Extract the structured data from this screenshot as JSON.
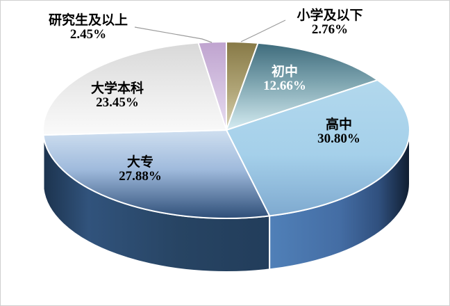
{
  "frame": {
    "background_color": "#ffffff",
    "border_color": "#cfcfcf"
  },
  "chart_data": {
    "type": "pie",
    "style": "3d",
    "title": "",
    "legend": "none",
    "unit": "%",
    "start_angle_deg": 0,
    "direction": "clockwise",
    "categories": [
      "小学及以下",
      "初中",
      "高中",
      "大专",
      "大学本科",
      "研究生及以上"
    ],
    "values": [
      2.76,
      12.66,
      30.8,
      27.88,
      23.45,
      2.45
    ],
    "slices": [
      {
        "name": "primary-school-or-below",
        "label": "小学及以下",
        "value": 2.76,
        "pct_label": "2.76%",
        "label_placement": "outside-right",
        "label_color": "#000000",
        "has_leader_line": true,
        "top_gradient": [
          [
            "0%",
            "#877946"
          ],
          [
            "55%",
            "#b0a577"
          ],
          [
            "100%",
            "#d8d1b2"
          ]
        ],
        "side_gradient": [
          [
            "0%",
            "#877946"
          ],
          [
            "100%",
            "#b0a577"
          ]
        ]
      },
      {
        "name": "middle-school",
        "label": "初中",
        "value": 12.66,
        "pct_label": "12.66%",
        "label_placement": "inside",
        "label_color": "#ffffff",
        "has_leader_line": false,
        "top_gradient": [
          [
            "0%",
            "#3e6b7c"
          ],
          [
            "45%",
            "#7da4af"
          ],
          [
            "100%",
            "#d5ecf2"
          ]
        ],
        "side_gradient": [
          [
            "0%",
            "#3e6b7c"
          ],
          [
            "100%",
            "#7da4af"
          ]
        ]
      },
      {
        "name": "high-school",
        "label": "高中",
        "value": 30.8,
        "pct_label": "30.80%",
        "label_placement": "inside",
        "label_color": "#000000",
        "has_leader_line": false,
        "top_gradient": [
          [
            "0%",
            "#b2d8ed"
          ],
          [
            "55%",
            "#a5d0ea"
          ],
          [
            "100%",
            "#7ea9cf"
          ]
        ],
        "side_gradient": [
          [
            "0%",
            "#5080b8"
          ],
          [
            "50%",
            "#446da4"
          ],
          [
            "78%",
            "#30507e"
          ],
          [
            "100%",
            "#0f1d30"
          ]
        ]
      },
      {
        "name": "junior-college",
        "label": "大专",
        "value": 27.88,
        "pct_label": "27.88%",
        "label_placement": "inside",
        "label_color": "#000000",
        "has_leader_line": false,
        "top_gradient": [
          [
            "0%",
            "#cfdff0"
          ],
          [
            "45%",
            "#9fbadc"
          ],
          [
            "100%",
            "#2e4e78"
          ]
        ],
        "side_gradient": [
          [
            "0%",
            "#1c334e"
          ],
          [
            "20%",
            "#31537c"
          ],
          [
            "60%",
            "#274463"
          ],
          [
            "100%",
            "#223d5b"
          ]
        ]
      },
      {
        "name": "bachelor-degree",
        "label": "大学本科",
        "value": 23.45,
        "pct_label": "23.45%",
        "label_placement": "inside",
        "label_color": "#000000",
        "has_leader_line": false,
        "top_gradient": [
          [
            "0%",
            "#d8d8d8"
          ],
          [
            "55%",
            "#ececec"
          ],
          [
            "100%",
            "#fafafa"
          ]
        ],
        "side_gradient": [
          [
            "0%",
            "#c8c8c8"
          ],
          [
            "100%",
            "#e6e6e6"
          ]
        ]
      },
      {
        "name": "graduate-or-above",
        "label": "研究生及以上",
        "value": 2.45,
        "pct_label": "2.45%",
        "label_placement": "outside-left",
        "label_color": "#000000",
        "has_leader_line": true,
        "top_gradient": [
          [
            "0%",
            "#bfa3cf"
          ],
          [
            "100%",
            "#e7ddf1"
          ]
        ],
        "side_gradient": [
          [
            "0%",
            "#bfa3cf"
          ],
          [
            "100%",
            "#e7ddf1"
          ]
        ]
      }
    ],
    "slice_border_color": "#ffffff",
    "leader_line_color": "#9b9b9b"
  }
}
